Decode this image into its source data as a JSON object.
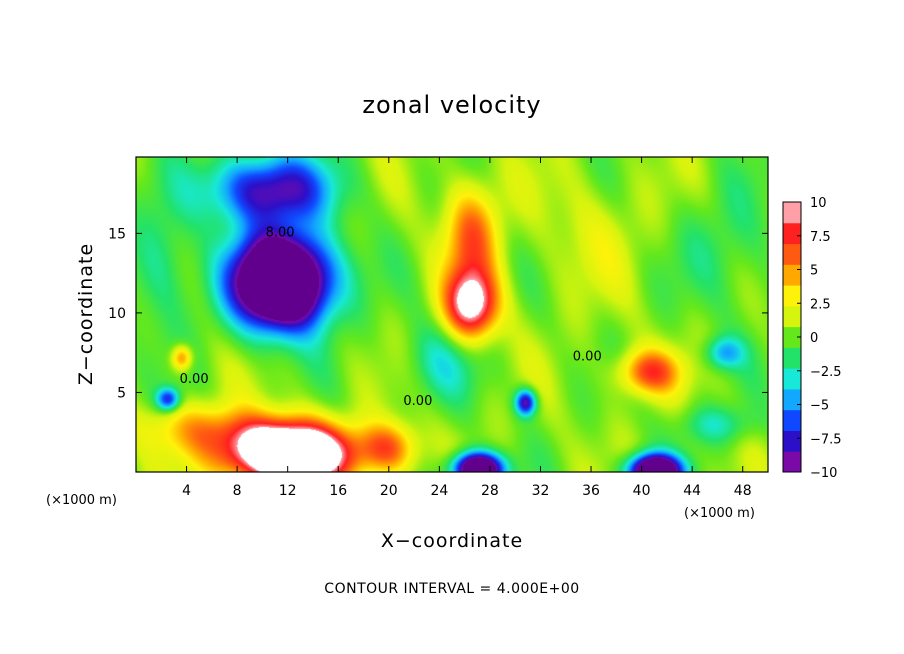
{
  "chart_data": {
    "type": "heatmap",
    "title": "zonal velocity",
    "xlabel": "X−coordinate",
    "ylabel": "Z−coordinate",
    "x_unit_left": "(×1000 m)",
    "x_unit_right": "(×1000 m)",
    "xlim": [
      0,
      50
    ],
    "ylim": [
      0,
      19.8
    ],
    "xticks": [
      {
        "value": 4,
        "label": "4"
      },
      {
        "value": 8,
        "label": "8"
      },
      {
        "value": 12,
        "label": "12"
      },
      {
        "value": 16,
        "label": "16"
      },
      {
        "value": 20,
        "label": "20"
      },
      {
        "value": 24,
        "label": "24"
      },
      {
        "value": 28,
        "label": "28"
      },
      {
        "value": 32,
        "label": "32"
      },
      {
        "value": 36,
        "label": "36"
      },
      {
        "value": 40,
        "label": "40"
      },
      {
        "value": 44,
        "label": "44"
      },
      {
        "value": 48,
        "label": "48"
      }
    ],
    "yticks": [
      {
        "value": 5,
        "label": "5"
      },
      {
        "value": 10,
        "label": "10"
      },
      {
        "value": 15,
        "label": "15"
      }
    ],
    "colorbar": {
      "range": [
        -10,
        10
      ],
      "ticks": [
        {
          "value": 10,
          "label": "10"
        },
        {
          "value": 7.5,
          "label": "7.5"
        },
        {
          "value": 5,
          "label": "5"
        },
        {
          "value": 2.5,
          "label": "2.5"
        },
        {
          "value": 0,
          "label": "0"
        },
        {
          "value": -2.5,
          "label": "−2.5"
        },
        {
          "value": -5,
          "label": "−5"
        },
        {
          "value": -7.5,
          "label": "−7.5"
        },
        {
          "value": -10,
          "label": "−10"
        }
      ],
      "colors": [
        "#7a0aa8",
        "#2b10c8",
        "#1048ff",
        "#12a8ff",
        "#18e8d8",
        "#22e26a",
        "#64e81c",
        "#d6f40e",
        "#fff20a",
        "#ffa800",
        "#ff5a12",
        "#ff2020",
        "#ffa0a8"
      ]
    },
    "contour_labels": [
      {
        "text": "8.00",
        "x": 11.4,
        "y": 14.8
      },
      {
        "text": "0.00",
        "x": 4.6,
        "y": 5.6
      },
      {
        "text": "0.00",
        "x": 22.3,
        "y": 4.2
      },
      {
        "text": "0.00",
        "x": 35.7,
        "y": 7.0
      }
    ],
    "footer": "CONTOUR INTERVAL = 4.000E+00",
    "field_features": [
      {
        "x": 11.5,
        "y": 12.0,
        "sx": 3.8,
        "sy": 2.9,
        "amp": -22
      },
      {
        "x": 10.5,
        "y": 17.8,
        "sx": 4.8,
        "sy": 2.2,
        "amp": -10
      },
      {
        "x": 26.5,
        "y": 10.5,
        "sx": 2.1,
        "sy": 2.2,
        "amp": 11
      },
      {
        "x": 26.5,
        "y": 15.0,
        "sx": 2.2,
        "sy": 3.2,
        "amp": 6
      },
      {
        "x": 12.0,
        "y": 1.2,
        "sx": 5.0,
        "sy": 1.9,
        "amp": 18
      },
      {
        "x": 20.0,
        "y": 1.5,
        "sx": 2.2,
        "sy": 1.6,
        "amp": 6
      },
      {
        "x": 27.0,
        "y": 0.2,
        "sx": 1.9,
        "sy": 1.0,
        "amp": -18
      },
      {
        "x": 41.0,
        "y": 0.1,
        "sx": 2.0,
        "sy": 1.0,
        "amp": -18
      },
      {
        "x": 40.5,
        "y": 6.3,
        "sx": 2.4,
        "sy": 1.4,
        "amp": 7
      },
      {
        "x": 30.8,
        "y": 4.4,
        "sx": 0.8,
        "sy": 0.8,
        "amp": -10
      },
      {
        "x": 2.5,
        "y": 4.6,
        "sx": 0.9,
        "sy": 0.7,
        "amp": -8
      },
      {
        "x": 3.6,
        "y": 7.2,
        "sx": 0.8,
        "sy": 0.8,
        "amp": 6
      },
      {
        "x": 46.5,
        "y": 7.5,
        "sx": 1.5,
        "sy": 1.0,
        "amp": -5
      },
      {
        "x": 5.5,
        "y": 2.8,
        "sx": 5.5,
        "sy": 1.6,
        "amp": 4
      },
      {
        "x": 24.0,
        "y": 7.0,
        "sx": 3.0,
        "sy": 2.5,
        "amp": -3
      },
      {
        "x": 47.0,
        "y": 14.0,
        "sx": 4.0,
        "sy": 4.0,
        "amp": -2
      },
      {
        "x": 2.0,
        "y": 13.0,
        "sx": 2.5,
        "sy": 4.0,
        "amp": -3
      },
      {
        "x": 46.0,
        "y": 3.0,
        "sx": 3.0,
        "sy": 1.2,
        "amp": -3
      },
      {
        "x": 36.0,
        "y": 15.0,
        "sx": 4.0,
        "sy": 4.0,
        "amp": 1.5
      }
    ]
  }
}
